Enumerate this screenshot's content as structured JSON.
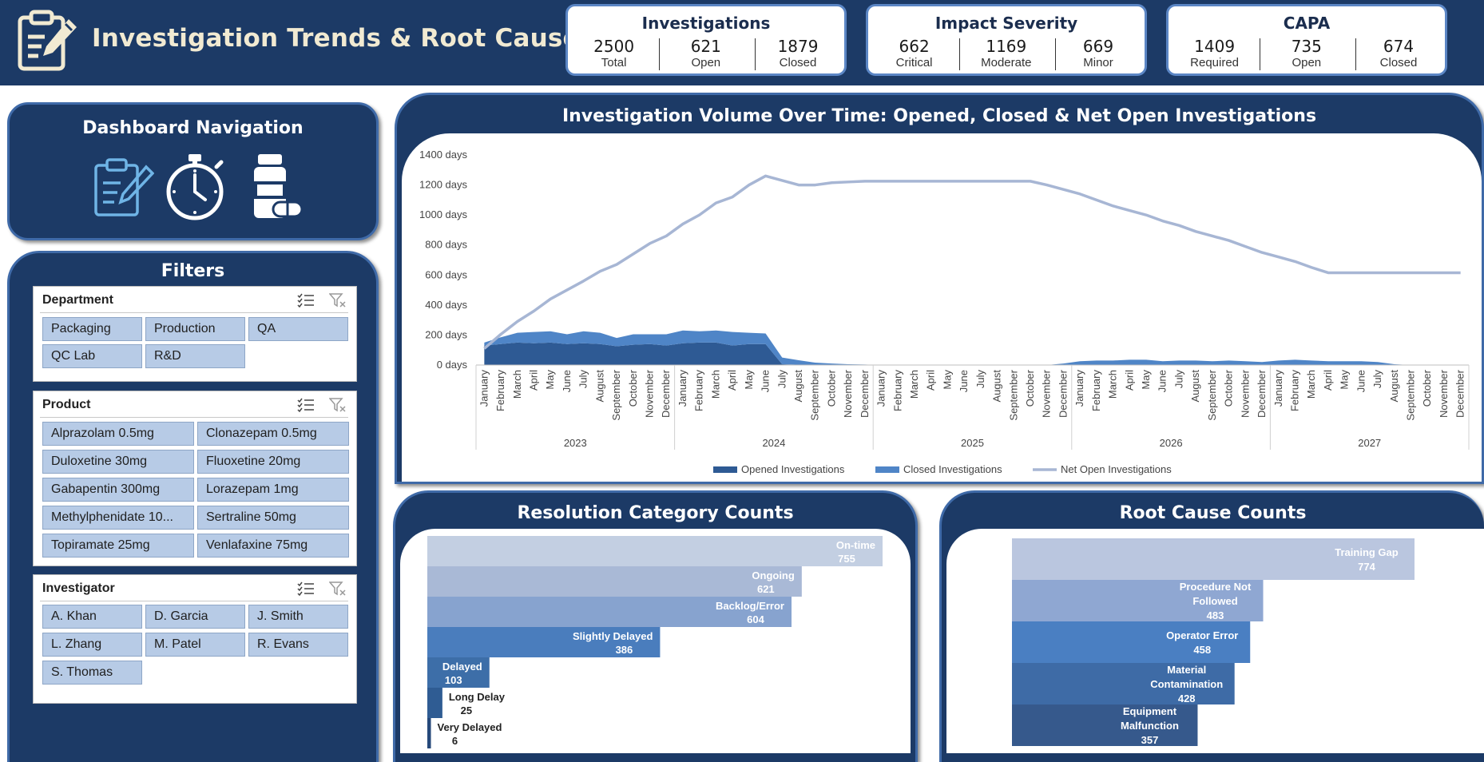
{
  "header": {
    "title": "Investigation Trends & Root Causes",
    "icon": "clipboard-pen-icon"
  },
  "kpis": [
    {
      "title": "Investigations",
      "items": [
        {
          "value": "2500",
          "label": "Total"
        },
        {
          "value": "621",
          "label": "Open"
        },
        {
          "value": "1879",
          "label": "Closed"
        }
      ]
    },
    {
      "title": "Impact Severity",
      "items": [
        {
          "value": "662",
          "label": "Critical"
        },
        {
          "value": "1169",
          "label": "Moderate"
        },
        {
          "value": "669",
          "label": "Minor"
        }
      ]
    },
    {
      "title": "CAPA",
      "items": [
        {
          "value": "1409",
          "label": "Required"
        },
        {
          "value": "735",
          "label": "Open"
        },
        {
          "value": "674",
          "label": "Closed"
        }
      ]
    }
  ],
  "nav": {
    "title": "Dashboard Navigation",
    "icons": [
      "clipboard-pen-icon",
      "stopwatch-icon",
      "medicine-bottle-icon"
    ]
  },
  "filters": {
    "title": "Filters",
    "department": {
      "title": "Department",
      "items": [
        "Packaging",
        "Production",
        "QA",
        "QC Lab",
        "R&D"
      ]
    },
    "product": {
      "title": "Product",
      "items": [
        "Alprazolam 0.5mg",
        "Clonazepam 0.5mg",
        "Duloxetine 30mg",
        "Fluoxetine 20mg",
        "Gabapentin 300mg",
        "Lorazepam 1mg",
        "Methylphenidate 10...",
        "Sertraline 50mg",
        "Topiramate 25mg",
        "Venlafaxine 75mg"
      ]
    },
    "investigator": {
      "title": "Investigator",
      "items": [
        "A. Khan",
        "D. Garcia",
        "J. Smith",
        "L. Zhang",
        "M. Patel",
        "R. Evans",
        "S. Thomas"
      ]
    }
  },
  "chart_data": [
    {
      "type": "area",
      "title": "Investigation Volume Over Time: Opened, Closed & Net Open Investigations",
      "years": [
        "2023",
        "2024",
        "2025",
        "2026",
        "2027"
      ],
      "months": [
        "January",
        "February",
        "March",
        "April",
        "May",
        "June",
        "July",
        "August",
        "September",
        "October",
        "November",
        "December"
      ],
      "ylim": [
        0,
        1400
      ],
      "yticks": [
        "0 days",
        "200 days",
        "400 days",
        "600 days",
        "800 days",
        "1000 days",
        "1200 days",
        "1400 days"
      ],
      "legend": "bottom",
      "colors": {
        "opened": "#2e5a94",
        "closed": "#4f85c7",
        "net": "#a7b6d4"
      },
      "series": [
        {
          "name": "Opened Investigations",
          "values": [
            130,
            140,
            150,
            145,
            150,
            140,
            145,
            140,
            125,
            135,
            140,
            130,
            145,
            150,
            150,
            130,
            140,
            140,
            5,
            2,
            1,
            0,
            0,
            0,
            0,
            0,
            0,
            0,
            0,
            0,
            0,
            0,
            0,
            0,
            0,
            0,
            0,
            0,
            0,
            0,
            0,
            0,
            0,
            0,
            0,
            0,
            0,
            0,
            0,
            0,
            0,
            0,
            0,
            0,
            0,
            0,
            0,
            0,
            0,
            0
          ]
        },
        {
          "name": "Closed Investigations",
          "values": [
            20,
            45,
            65,
            75,
            75,
            65,
            80,
            75,
            55,
            70,
            65,
            75,
            85,
            75,
            80,
            90,
            75,
            70,
            45,
            30,
            15,
            10,
            5,
            3,
            0,
            0,
            0,
            0,
            0,
            0,
            0,
            0,
            0,
            0,
            0,
            10,
            25,
            30,
            30,
            35,
            35,
            25,
            30,
            30,
            25,
            30,
            25,
            20,
            30,
            35,
            30,
            25,
            25,
            25,
            20,
            5,
            0,
            0,
            0,
            0
          ]
        },
        {
          "name": "Net Open Investigations",
          "values": [
            110,
            205,
            290,
            360,
            440,
            500,
            560,
            625,
            670,
            740,
            810,
            860,
            940,
            1000,
            1080,
            1120,
            1200,
            1260,
            1230,
            1200,
            1200,
            1215,
            1220,
            1225,
            1225,
            1225,
            1225,
            1225,
            1225,
            1225,
            1225,
            1225,
            1225,
            1225,
            1200,
            1170,
            1140,
            1100,
            1060,
            1030,
            1000,
            960,
            930,
            890,
            860,
            830,
            790,
            750,
            720,
            690,
            650,
            615,
            615,
            615,
            615,
            615,
            615,
            615,
            615,
            615
          ]
        }
      ]
    },
    {
      "type": "bar",
      "title": "Resolution Category Counts",
      "categories": [
        "On-time",
        "Ongoing",
        "Backlog/Error",
        "Slightly Delayed",
        "Delayed",
        "Long Delay",
        "Very Delayed"
      ],
      "values": [
        755,
        621,
        604,
        386,
        103,
        25,
        6
      ],
      "colors": [
        "#c3cfe2",
        "#a9b9d6",
        "#87a3cf",
        "#4a7dbd",
        "#3d6ea8",
        "#2f5c93",
        "#26497a"
      ],
      "xlim": [
        0,
        755
      ]
    },
    {
      "type": "bar",
      "title": "Root Cause Counts",
      "categories": [
        "Training Gap",
        "Procedure Not Followed",
        "Operator Error",
        "Material Contamination",
        "Equipment Malfunction"
      ],
      "labels": [
        [
          "Training Gap"
        ],
        [
          "Procedure Not",
          "Followed"
        ],
        [
          "Operator Error"
        ],
        [
          "Material",
          "Contamination"
        ],
        [
          "Equipment",
          "Malfunction"
        ]
      ],
      "values": [
        774,
        483,
        458,
        428,
        357
      ],
      "colors": [
        "#bac6df",
        "#8fa7d2",
        "#4a7fc2",
        "#3e6ba6",
        "#36598c"
      ],
      "xlim": [
        0,
        774
      ]
    }
  ]
}
